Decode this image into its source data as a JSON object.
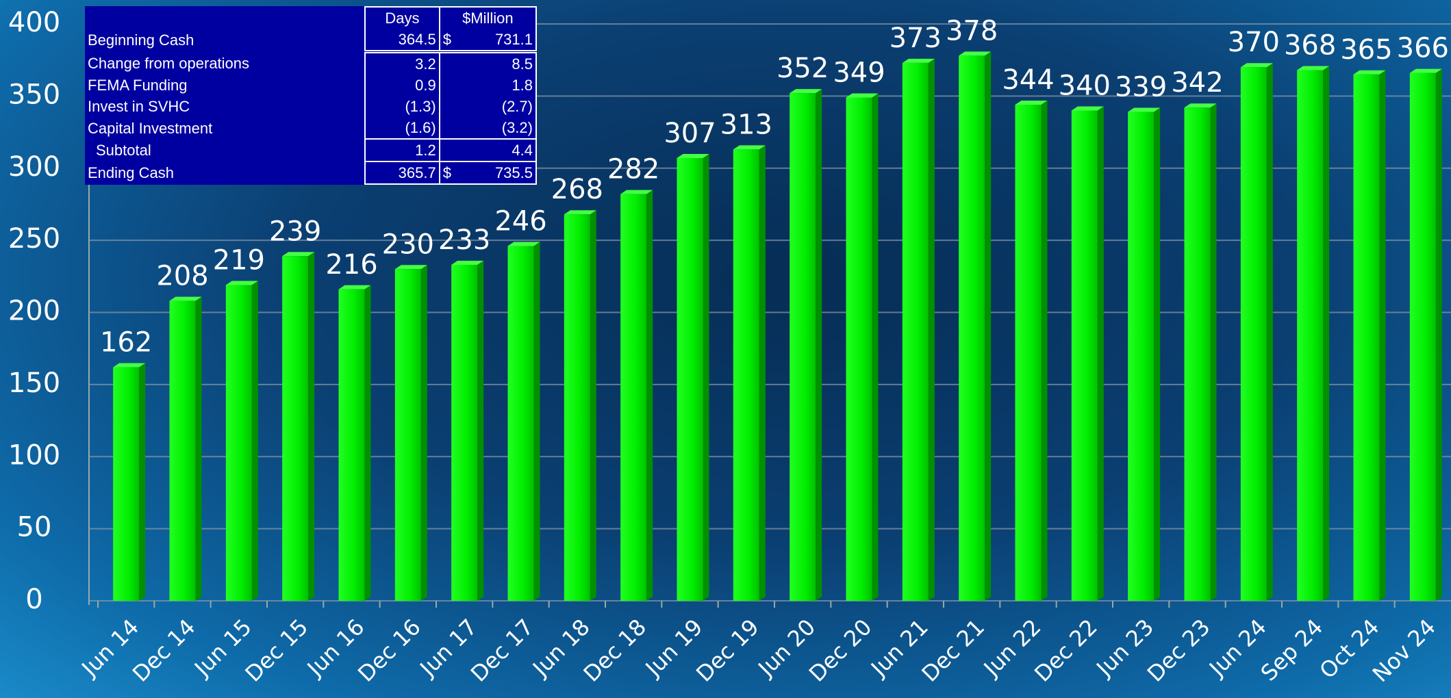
{
  "chart_data": {
    "type": "bar",
    "categories": [
      "Jun 14",
      "Dec 14",
      "Jun 15",
      "Dec 15",
      "Jun 16",
      "Dec 16",
      "Jun 17",
      "Dec 17",
      "Jun 18",
      "Dec 18",
      "Jun 19",
      "Dec 19",
      "Jun 20",
      "Dec 20",
      "Jun 21",
      "Dec 21",
      "Jun 22",
      "Dec 22",
      "Jun 23",
      "Dec 23",
      "Jun 24",
      "Sep 24",
      "Oct 24",
      "Nov 24"
    ],
    "values": [
      162,
      208,
      219,
      239,
      216,
      230,
      233,
      246,
      268,
      282,
      307,
      313,
      352,
      349,
      373,
      378,
      344,
      340,
      339,
      342,
      370,
      368,
      365,
      366
    ],
    "color": "#00ee00",
    "ylim": [
      0,
      400
    ],
    "yticks": [
      0,
      50,
      100,
      150,
      200,
      250,
      300,
      350,
      400
    ],
    "grid": true
  },
  "table": {
    "header": [
      "Days",
      "$Million"
    ],
    "rows": [
      {
        "label": "Beginning Cash",
        "days": "364.5",
        "currency": "$",
        "million": "731.1"
      },
      {
        "label": "Change from operations",
        "days": "3.2",
        "million": "8.5"
      },
      {
        "label": "FEMA Funding",
        "days": "0.9",
        "million": "1.8"
      },
      {
        "label": "Invest in SVHC",
        "days": "(1.3)",
        "million": "(2.7)"
      },
      {
        "label": "Capital Investment",
        "days": "(1.6)",
        "million": "(3.2)"
      },
      {
        "label": "Subtotal",
        "days": "1.2",
        "million": "4.4"
      },
      {
        "label": "Ending Cash",
        "days": "365.7",
        "currency": "$",
        "million": "735.5"
      }
    ]
  }
}
